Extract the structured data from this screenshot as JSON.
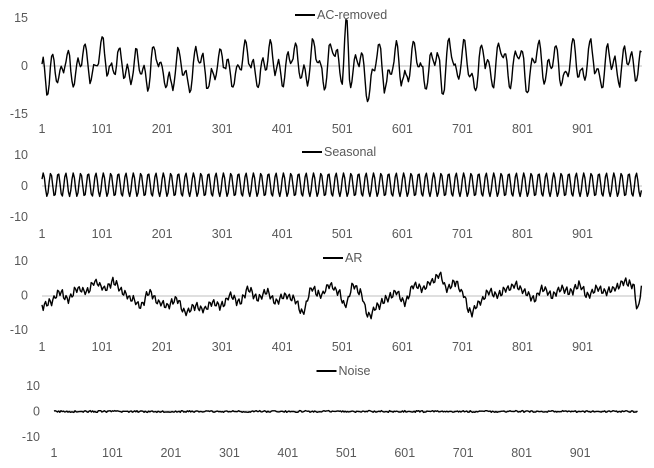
{
  "chart_data": [
    {
      "type": "line",
      "title": "",
      "legend": "top-center",
      "series": [
        {
          "name": "AC-removed",
          "color": "#000000",
          "anchors": [
            [
              1,
              -1
            ],
            [
              10,
              -6
            ],
            [
              20,
              2
            ],
            [
              30,
              -5
            ],
            [
              40,
              3
            ],
            [
              55,
              -4
            ],
            [
              70,
              5
            ],
            [
              85,
              -3
            ],
            [
              100,
              6
            ],
            [
              115,
              -2
            ],
            [
              130,
              3
            ],
            [
              145,
              -4
            ],
            [
              160,
              2
            ],
            [
              175,
              -5
            ],
            [
              190,
              5
            ],
            [
              200,
              -2
            ],
            [
              215,
              -6
            ],
            [
              230,
              3
            ],
            [
              245,
              -6
            ],
            [
              260,
              4
            ],
            [
              280,
              -5
            ],
            [
              300,
              3
            ],
            [
              320,
              -4
            ],
            [
              340,
              5
            ],
            [
              360,
              -4
            ],
            [
              380,
              4
            ],
            [
              400,
              -3
            ],
            [
              420,
              4
            ],
            [
              440,
              -4
            ],
            [
              455,
              6
            ],
            [
              470,
              -5
            ],
            [
              485,
              6
            ],
            [
              500,
              -3
            ],
            [
              508,
              12
            ],
            [
              515,
              -4
            ],
            [
              530,
              4
            ],
            [
              545,
              -9
            ],
            [
              560,
              5
            ],
            [
              575,
              -6
            ],
            [
              590,
              4
            ],
            [
              605,
              -5
            ],
            [
              620,
              5
            ],
            [
              640,
              -5
            ],
            [
              655,
              4
            ],
            [
              670,
              -6
            ],
            [
              680,
              9
            ],
            [
              690,
              -4
            ],
            [
              705,
              5
            ],
            [
              720,
              -7
            ],
            [
              735,
              5
            ],
            [
              750,
              -4
            ],
            [
              765,
              6
            ],
            [
              780,
              -4
            ],
            [
              795,
              5
            ],
            [
              810,
              -6
            ],
            [
              825,
              6
            ],
            [
              840,
              -3
            ],
            [
              855,
              4
            ],
            [
              870,
              -5
            ],
            [
              885,
              6
            ],
            [
              900,
              -4
            ],
            [
              915,
              5
            ],
            [
              930,
              -5
            ],
            [
              945,
              4
            ],
            [
              960,
              -3
            ],
            [
              975,
              4
            ],
            [
              990,
              -2
            ],
            [
              1000,
              2
            ]
          ],
          "wiggle_amplitude": 4.5,
          "wiggle_period": 14
        }
      ],
      "x_ticks": [
        "1",
        "101",
        "201",
        "301",
        "401",
        "501",
        "601",
        "701",
        "801",
        "901"
      ],
      "y_ticks": [
        "15",
        "0",
        "-15"
      ],
      "ylim": [
        -15,
        15
      ],
      "xlim": [
        1,
        1000
      ]
    },
    {
      "type": "line",
      "title": "",
      "legend": "top-center",
      "series": [
        {
          "name": "Seasonal",
          "color": "#000000",
          "amplitude": 3.8,
          "offset": 0.4,
          "period": 12.5
        }
      ],
      "x_ticks": [
        "1",
        "101",
        "201",
        "301",
        "401",
        "501",
        "601",
        "701",
        "801",
        "901"
      ],
      "y_ticks": [
        "10",
        "0",
        "-10"
      ],
      "ylim": [
        -10,
        10
      ],
      "xlim": [
        1,
        1000
      ]
    },
    {
      "type": "line",
      "title": "",
      "legend": "top-center",
      "series": [
        {
          "name": "AR",
          "color": "#000000",
          "anchors": [
            [
              1,
              -3
            ],
            [
              15,
              -2
            ],
            [
              30,
              1
            ],
            [
              45,
              -1
            ],
            [
              60,
              2
            ],
            [
              75,
              1
            ],
            [
              90,
              4
            ],
            [
              105,
              2
            ],
            [
              120,
              4
            ],
            [
              135,
              1
            ],
            [
              150,
              -1
            ],
            [
              165,
              -3
            ],
            [
              180,
              1
            ],
            [
              195,
              -2
            ],
            [
              210,
              -3
            ],
            [
              225,
              -1
            ],
            [
              240,
              -5
            ],
            [
              255,
              -3
            ],
            [
              270,
              -4
            ],
            [
              285,
              -2
            ],
            [
              300,
              -3
            ],
            [
              315,
              0
            ],
            [
              330,
              -2
            ],
            [
              345,
              2
            ],
            [
              360,
              -1
            ],
            [
              375,
              1
            ],
            [
              390,
              -2
            ],
            [
              405,
              0
            ],
            [
              420,
              -1
            ],
            [
              435,
              -5
            ],
            [
              450,
              2
            ],
            [
              465,
              0
            ],
            [
              480,
              3
            ],
            [
              495,
              1
            ],
            [
              505,
              -3
            ],
            [
              520,
              3
            ],
            [
              530,
              1
            ],
            [
              545,
              -6
            ],
            [
              560,
              -3
            ],
            [
              575,
              -1
            ],
            [
              590,
              1
            ],
            [
              605,
              -2
            ],
            [
              620,
              3
            ],
            [
              635,
              2
            ],
            [
              650,
              4
            ],
            [
              663,
              6
            ],
            [
              675,
              2
            ],
            [
              690,
              4
            ],
            [
              700,
              1
            ],
            [
              715,
              -5
            ],
            [
              730,
              -2
            ],
            [
              745,
              1
            ],
            [
              760,
              0
            ],
            [
              775,
              2
            ],
            [
              790,
              3
            ],
            [
              805,
              1
            ],
            [
              820,
              -1
            ],
            [
              835,
              2
            ],
            [
              850,
              0
            ],
            [
              865,
              2
            ],
            [
              880,
              1
            ],
            [
              895,
              3
            ],
            [
              910,
              0
            ],
            [
              925,
              2
            ],
            [
              940,
              1
            ],
            [
              955,
              2
            ],
            [
              970,
              4
            ],
            [
              985,
              3
            ],
            [
              993,
              -4
            ],
            [
              1000,
              3
            ]
          ],
          "wiggle_amplitude": 1.4,
          "wiggle_period": 7
        }
      ],
      "x_ticks": [
        "1",
        "101",
        "201",
        "301",
        "401",
        "501",
        "601",
        "701",
        "801",
        "901"
      ],
      "y_ticks": [
        "10",
        "0",
        "-10"
      ],
      "ylim": [
        -10,
        10
      ],
      "xlim": [
        1,
        1000
      ]
    },
    {
      "type": "line",
      "title": "",
      "legend": "top-center",
      "series": [
        {
          "name": "Noise",
          "color": "#000000",
          "noise_amplitude": 0.35
        }
      ],
      "x_ticks": [
        "1",
        "101",
        "201",
        "301",
        "401",
        "501",
        "601",
        "701",
        "801",
        "901"
      ],
      "y_ticks": [
        "10",
        "0",
        "-10"
      ],
      "ylim": [
        -10,
        10
      ],
      "xlim": [
        1,
        1000
      ]
    }
  ]
}
